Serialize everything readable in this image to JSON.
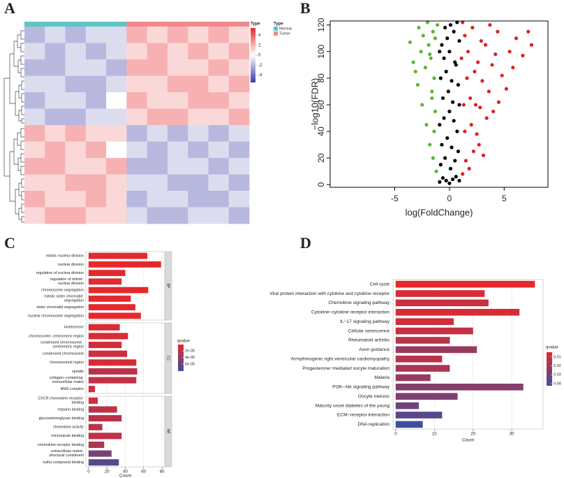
{
  "chart_data": [
    {
      "type": "heatmap",
      "panel_label": "A",
      "annotation_name": "Type",
      "legend_title": "Type",
      "type_legend": [
        {
          "name": "Normal",
          "color": "#5fc4c4"
        },
        {
          "name": "Tumor",
          "color": "#f08a8a"
        }
      ],
      "colors": [
        "#3c3ca8",
        "#ffffff",
        "#e8282b"
      ],
      "clim": [
        -5.5,
        5.5
      ],
      "ticks": [
        4,
        2,
        0,
        -2,
        -4
      ],
      "column_types": [
        0,
        0,
        0,
        0,
        0,
        1,
        1,
        1,
        1,
        1,
        1
      ],
      "values": [
        [
          -2,
          -1,
          -2,
          -1,
          -1,
          2,
          1,
          2,
          1,
          2,
          1
        ],
        [
          -1,
          -2,
          -1,
          -2,
          -1,
          1,
          2,
          1,
          2,
          1,
          2
        ],
        [
          -2,
          -2,
          -1,
          -1,
          -2,
          2,
          2,
          1,
          1,
          2,
          1
        ],
        [
          -1,
          -1,
          -2,
          -2,
          -1,
          1,
          1,
          2,
          2,
          1,
          2
        ],
        [
          -2,
          -1,
          -1,
          -2,
          0,
          2,
          1,
          1,
          2,
          2,
          1
        ],
        [
          -1,
          -2,
          -2,
          -1,
          -1,
          1,
          2,
          2,
          1,
          1,
          2
        ],
        [
          2,
          1,
          2,
          1,
          1,
          -2,
          -1,
          -2,
          -1,
          -2,
          -1
        ],
        [
          1,
          2,
          1,
          2,
          0,
          -1,
          -2,
          -1,
          -2,
          -1,
          -2
        ],
        [
          2,
          2,
          1,
          1,
          2,
          -2,
          -2,
          -1,
          -1,
          -2,
          -1
        ],
        [
          1,
          1,
          2,
          2,
          1,
          -1,
          -1,
          -2,
          -2,
          -1,
          -2
        ],
        [
          2,
          1,
          1,
          2,
          1,
          -2,
          -1,
          -1,
          -2,
          -2,
          -1
        ],
        [
          1,
          2,
          2,
          1,
          1,
          -1,
          -2,
          -2,
          -1,
          -1,
          -2
        ]
      ]
    },
    {
      "type": "scatter",
      "panel_label": "B",
      "x_label": "log(FoldChange)",
      "y_label": "−log10(FDR)",
      "xlim": [
        -10.9,
        9.0
      ],
      "ylim": [
        -2,
        123
      ],
      "xticks": [
        -5,
        0,
        5
      ],
      "yticks": [
        0,
        20,
        40,
        60,
        80,
        100,
        120
      ],
      "series": [
        {
          "color": "#000000",
          "x": [
            -0.9,
            -0.6,
            -0.3,
            0,
            0.3,
            0.6,
            0.9,
            -0.8,
            -0.4,
            0.1,
            0.5,
            0.8,
            -0.7,
            -0.2,
            0.2,
            0.7,
            -0.9,
            -0.5,
            0,
            0.4,
            0.9,
            -0.6,
            -0.1,
            0.3,
            0.8,
            -0.8,
            -0.3,
            0.2,
            0.6,
            -0.5,
            0,
            0.5,
            -0.7,
            -0.2,
            0.4,
            0.9,
            -0.4,
            0.1,
            0.7,
            -0.9
          ],
          "values": [
            2,
            5,
            3,
            1,
            4,
            6,
            3,
            15,
            20,
            12,
            18,
            25,
            30,
            35,
            28,
            40,
            45,
            50,
            55,
            48,
            60,
            65,
            70,
            62,
            75,
            80,
            85,
            78,
            90,
            95,
            100,
            92,
            105,
            110,
            115,
            108,
            118,
            120,
            122,
            100
          ]
        },
        {
          "color": "#5cb531",
          "x": [
            -1.2,
            -1.5,
            -1.8,
            -2.1,
            -1.3,
            -2.5,
            -1.6,
            -2.9,
            -1.4,
            -2.2,
            -3.3,
            -1.7,
            -2.6,
            -1.9,
            -3.6,
            -1.3,
            -2.4,
            -1.5,
            -2.8,
            -1.1,
            -2.0,
            -1.4,
            -3.1,
            -1.6,
            -1.8
          ],
          "values": [
            10,
            20,
            30,
            45,
            55,
            60,
            70,
            75,
            80,
            88,
            92,
            95,
            100,
            105,
            107,
            110,
            112,
            115,
            118,
            120,
            122,
            40,
            85,
            65,
            98
          ]
        },
        {
          "color": "#e02020",
          "x": [
            1.2,
            1.5,
            1.8,
            2.2,
            2.7,
            3.1,
            1.4,
            2.0,
            2.5,
            3.4,
            4.0,
            1.3,
            1.9,
            2.8,
            3.6,
            4.5,
            5.2,
            1.6,
            2.3,
            3.0,
            3.9,
            4.8,
            5.8,
            1.1,
            1.7,
            2.6,
            3.3,
            4.2,
            6.1,
            7.2,
            7.5,
            1.4,
            2.1,
            2.9,
            3.7,
            1.2,
            5.5,
            4.4,
            6.7,
            2.4
          ],
          "values": [
            8,
            18,
            12,
            25,
            30,
            22,
            40,
            45,
            38,
            50,
            55,
            60,
            65,
            58,
            70,
            62,
            72,
            80,
            85,
            78,
            90,
            82,
            88,
            95,
            100,
            92,
            105,
            98,
            110,
            115,
            105,
            112,
            118,
            108,
            120,
            122,
            100,
            115,
            97,
            60
          ]
        }
      ]
    },
    {
      "type": "bar",
      "panel_label": "C",
      "x_label": "Count",
      "xlim": [
        -3,
        83
      ],
      "xticks": [
        0,
        20,
        40,
        60,
        80
      ],
      "legend_title": "qvalue",
      "low_color": "#e8282b",
      "high_color": "#3b4f9e",
      "clim": [
        0,
        8.2e-05
      ],
      "qticks": [
        {
          "value": 2e-05,
          "label": "2e-05"
        },
        {
          "value": 4e-05,
          "label": "4e-05"
        },
        {
          "value": 6e-05,
          "label": "6e-05"
        }
      ],
      "panels": [
        {
          "name": "BP",
          "categories": [
            "mitotic nuclear division",
            "nuclear division",
            "regulation of nuclear division",
            "regulation of mitotic\nnuclear division",
            "chromosome segregation",
            "mitotic sister chromatid\nsegregation",
            "sister chromatid segregation",
            "nuclear chromosome segregation"
          ],
          "values": [
            64,
            79,
            40,
            36,
            65,
            46,
            51,
            57
          ],
          "qvalues": [
            2e-06,
            1e-06,
            3e-06,
            4e-06,
            1e-06,
            2e-06,
            2e-06,
            1e-06
          ]
        },
        {
          "name": "CC",
          "categories": [
            "kinetochore",
            "chromosome, centromeric region",
            "condensed chromosome,\ncentromeric region",
            "condensed chromosome",
            "chromosomal region",
            "spindle",
            "collagen−containing\nextracellular matrix",
            "NMS complex"
          ],
          "values": [
            34,
            43,
            36,
            42,
            52,
            53,
            52,
            7
          ],
          "qvalues": [
            6e-06,
            8e-06,
            1e-05,
            1.2e-05,
            8e-06,
            2.2e-05,
            1.8e-05,
            1.2e-05
          ]
        },
        {
          "name": "MF",
          "categories": [
            "CXCR chemokine receptor\nbinding",
            "heparin binding",
            "glycosaminoglycan binding",
            "chemokine activity",
            "microtubule binding",
            "chemokine receptor binding",
            "extracellular matrix\nstructural constituent",
            "sulfur compound binding"
          ],
          "values": [
            10,
            31,
            36,
            15,
            36,
            17,
            25,
            33
          ],
          "qvalues": [
            1e-05,
            2e-05,
            2.2e-05,
            2.4e-05,
            2e-05,
            2.8e-05,
            5.2e-05,
            6.8e-05
          ]
        }
      ]
    },
    {
      "type": "bar",
      "panel_label": "D",
      "x_label": "Count",
      "xlim": [
        -0.7,
        38.1
      ],
      "xticks": [
        0,
        10,
        20,
        30
      ],
      "legend_title": "qvalue",
      "low_color": "#e8282b",
      "high_color": "#3b4f9e",
      "clim": [
        0.0046,
        0.0424
      ],
      "qticks": [
        0.01,
        0.02,
        0.03,
        0.04
      ],
      "categories": [
        "Cell cycle",
        "Viral protein interaction with cytokine and cytokine receptor",
        "Chemokine signaling pathway",
        "Cytokine−cytokine receptor interaction",
        "IL−17 signaling pathway",
        "Cellular senescence",
        "Rheumatoid arthritis",
        "Axon guidance",
        "Arrhythmogenic right ventricular cardiomyopathy",
        "Progesterone−mediated oocyte maturation",
        "Malaria",
        "PI3K−Akt signaling pathway",
        "Oocyte meiosis",
        "Maturity onset diabetes of the young",
        "ECM−receptor interaction",
        "DNA replication"
      ],
      "values": [
        36,
        23,
        24,
        32,
        15,
        20,
        14,
        21,
        12,
        14,
        9,
        33,
        16,
        6,
        12,
        7
      ],
      "qvalues": [
        0.005,
        0.008,
        0.012,
        0.008,
        0.01,
        0.012,
        0.015,
        0.022,
        0.015,
        0.018,
        0.022,
        0.026,
        0.028,
        0.032,
        0.036,
        0.042
      ]
    }
  ]
}
